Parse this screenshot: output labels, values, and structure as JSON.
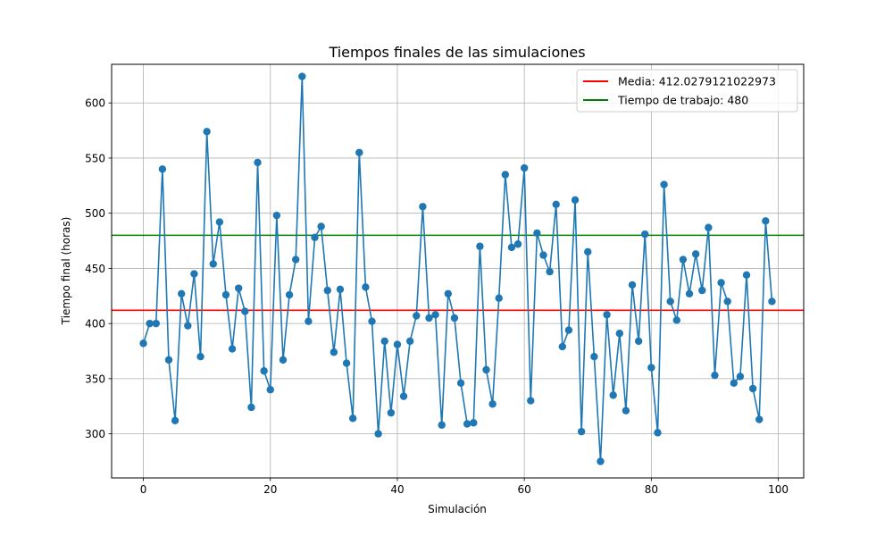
{
  "chart_data": {
    "type": "line",
    "title": "Tiempos finales de las simulaciones",
    "xlabel": "Simulación",
    "ylabel": "Tiempo final (horas)",
    "xlim": [
      -5,
      104
    ],
    "ylim": [
      260,
      635
    ],
    "xticks": [
      0,
      20,
      40,
      60,
      80,
      100
    ],
    "yticks": [
      300,
      350,
      400,
      450,
      500,
      550,
      600
    ],
    "grid": true,
    "legend_position": "top-right",
    "series": [
      {
        "kind": "line-marker",
        "color": "#1f77b4",
        "x": [
          0,
          1,
          2,
          3,
          4,
          5,
          6,
          7,
          8,
          9,
          10,
          11,
          12,
          13,
          14,
          15,
          16,
          17,
          18,
          19,
          20,
          21,
          22,
          23,
          24,
          25,
          26,
          27,
          28,
          29,
          30,
          31,
          32,
          33,
          34,
          35,
          36,
          37,
          38,
          39,
          40,
          41,
          42,
          43,
          44,
          45,
          46,
          47,
          48,
          49,
          50,
          51,
          52,
          53,
          54,
          55,
          56,
          57,
          58,
          59,
          60,
          61,
          62,
          63,
          64,
          65,
          66,
          67,
          68,
          69,
          70,
          71,
          72,
          73,
          74,
          75,
          76,
          77,
          78,
          79,
          80,
          81,
          82,
          83,
          84,
          85,
          86,
          87,
          88,
          89,
          90,
          91,
          92,
          93,
          94,
          95,
          96,
          97,
          98,
          99
        ],
        "values": [
          382,
          400,
          400,
          540,
          367,
          312,
          427,
          398,
          445,
          370,
          574,
          454,
          492,
          426,
          377,
          432,
          411,
          324,
          546,
          357,
          340,
          498,
          367,
          426,
          458,
          624,
          402,
          478,
          488,
          430,
          374,
          431,
          364,
          314,
          555,
          433,
          402,
          300,
          384,
          319,
          381,
          334,
          384,
          407,
          506,
          405,
          408,
          308,
          427,
          405,
          346,
          309,
          310,
          470,
          358,
          327,
          423,
          535,
          469,
          472,
          541,
          330,
          482,
          462,
          447,
          508,
          379,
          394,
          512,
          302,
          465,
          370,
          275,
          408,
          335,
          391,
          321,
          435,
          384,
          481,
          360,
          301,
          526,
          420,
          403,
          458,
          427,
          463,
          430,
          487,
          353,
          437,
          420,
          346,
          352,
          444,
          341,
          313,
          493,
          420
        ]
      },
      {
        "kind": "hline",
        "name": "Media: 412.0279121022973",
        "color": "#ff0000",
        "value": 412.0279121022973
      },
      {
        "kind": "hline",
        "name": "Tiempo de trabajo: 480",
        "color": "#008000",
        "value": 480
      }
    ]
  }
}
